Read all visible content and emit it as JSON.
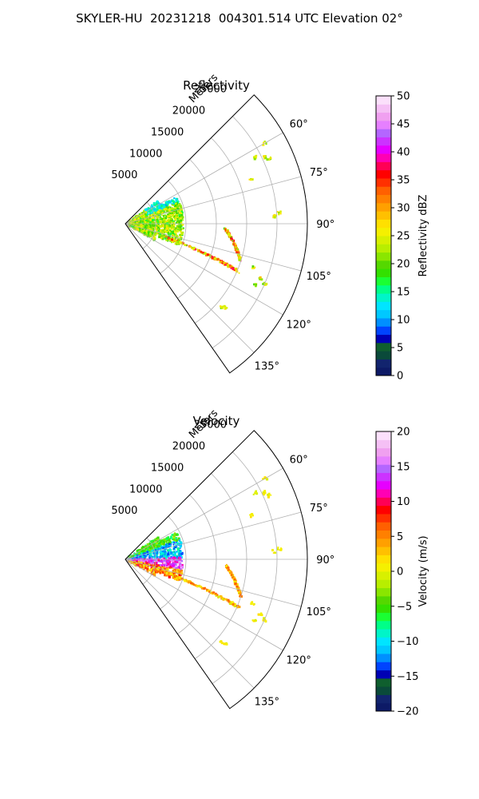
{
  "suptitle": "SKYLER-HU  20231218  004301.514 UTC Elevation 02°",
  "chart_data": [
    {
      "type": "heatmap",
      "title": "Reflectivity",
      "projection": "polar sector (azimuth 45°–145°, range 0–30000 m)",
      "azimuth_ticks": [
        "60°",
        "75°",
        "90°",
        "105°",
        "120°",
        "135°"
      ],
      "azimuth_tick_values": [
        60,
        75,
        90,
        105,
        120,
        135
      ],
      "range_label": "Meters",
      "range_ticks": [
        "5000",
        "10000",
        "15000",
        "20000",
        "25000"
      ],
      "range_tick_values": [
        5000,
        10000,
        15000,
        20000,
        25000
      ],
      "azimuth_range": [
        45,
        145
      ],
      "range_max": 30000,
      "grid": true,
      "colorbar": {
        "label": "Reflectivity dBZ",
        "min": 0,
        "max": 50,
        "ticks": [
          "0",
          "5",
          "10",
          "15",
          "20",
          "25",
          "30",
          "35",
          "40",
          "45",
          "50"
        ],
        "tick_values": [
          0,
          5,
          10,
          15,
          20,
          25,
          30,
          35,
          40,
          45,
          50
        ],
        "colors": [
          "#0d1a66",
          "#12246e",
          "#0a4a3a",
          "#0f5f2e",
          "#0000b4",
          "#0044ff",
          "#0090ff",
          "#00c8ff",
          "#00e5ff",
          "#00f5c8",
          "#00ff88",
          "#1aff33",
          "#33e000",
          "#55d800",
          "#8ae600",
          "#b8ee00",
          "#d8f000",
          "#f5f000",
          "#ffe000",
          "#ffc000",
          "#ffa000",
          "#ff8000",
          "#ff6000",
          "#ff3000",
          "#ff0000",
          "#ff0055",
          "#ff00b4",
          "#e600ff",
          "#cc33ff",
          "#b466ff",
          "#e680ff",
          "#f0a0f0",
          "#f5c0f5",
          "#fbe0fb"
        ]
      }
    },
    {
      "type": "heatmap",
      "title": "Velocity",
      "projection": "polar sector (azimuth 45°–145°, range 0–30000 m)",
      "azimuth_ticks": [
        "60°",
        "75°",
        "90°",
        "105°",
        "120°",
        "135°"
      ],
      "azimuth_tick_values": [
        60,
        75,
        90,
        105,
        120,
        135
      ],
      "range_label": "Meters",
      "range_ticks": [
        "5000",
        "10000",
        "15000",
        "20000",
        "25000"
      ],
      "range_tick_values": [
        5000,
        10000,
        15000,
        20000,
        25000
      ],
      "azimuth_range": [
        45,
        145
      ],
      "range_max": 30000,
      "grid": true,
      "colorbar": {
        "label": "Velocity (m/s)",
        "min": -20,
        "max": 20,
        "ticks": [
          "−20",
          "−15",
          "−10",
          "−5",
          "0",
          "5",
          "10",
          "15",
          "20"
        ],
        "tick_values": [
          -20,
          -15,
          -10,
          -5,
          0,
          5,
          10,
          15,
          20
        ],
        "colors": [
          "#0d1a66",
          "#12246e",
          "#0a4a3a",
          "#0f5f2e",
          "#0000b4",
          "#0044ff",
          "#0090ff",
          "#00c8ff",
          "#00e5ff",
          "#00f5c8",
          "#00ff88",
          "#1aff33",
          "#33e000",
          "#55d800",
          "#8ae600",
          "#b8ee00",
          "#d8f000",
          "#f5f000",
          "#ffe000",
          "#ffc000",
          "#ffa000",
          "#ff8000",
          "#ff6000",
          "#ff3000",
          "#ff0000",
          "#ff0055",
          "#ff00b4",
          "#e600ff",
          "#cc33ff",
          "#b466ff",
          "#e680ff",
          "#f0a0f0",
          "#f5c0f5",
          "#fbe0fb"
        ]
      }
    }
  ]
}
